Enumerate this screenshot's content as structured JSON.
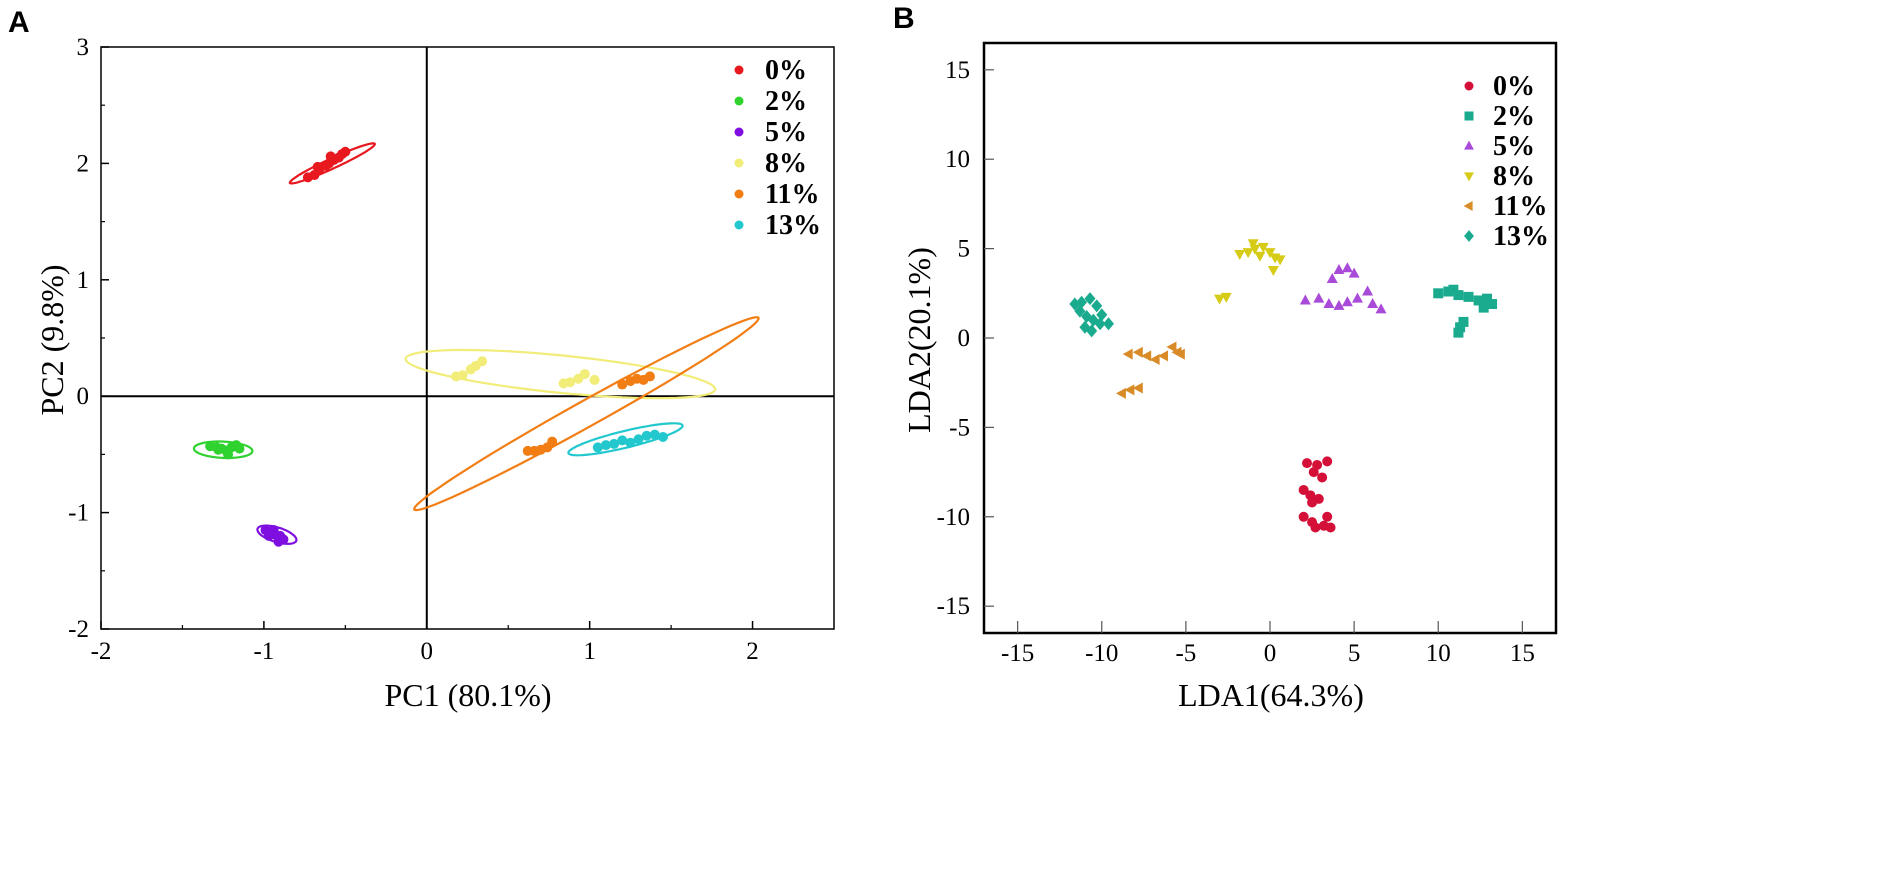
{
  "panels": [
    {
      "letter": "A",
      "type": "scatter",
      "xlabel": "PC1 (80.1%)",
      "ylabel": "PC2 (9.8%)",
      "xlim": [
        -2,
        2.5
      ],
      "ylim": [
        -2,
        3
      ],
      "xticks": [
        -2,
        -1,
        0,
        1,
        2
      ],
      "yticks": [
        -2,
        -1,
        0,
        1,
        2,
        3
      ],
      "legend_position": "top-right",
      "series": [
        {
          "name": "0%",
          "color": "#e8191e",
          "marker": "circle",
          "points": [
            [
              -0.73,
              1.88
            ],
            [
              -0.69,
              1.9
            ],
            [
              -0.66,
              1.95
            ],
            [
              -0.62,
              1.98
            ],
            [
              -0.6,
              2.0
            ],
            [
              -0.57,
              2.03
            ],
            [
              -0.54,
              2.05
            ],
            [
              -0.52,
              2.08
            ],
            [
              -0.5,
              2.1
            ],
            [
              -0.67,
              1.97
            ],
            [
              -0.59,
              2.06
            ]
          ],
          "ellipse": {
            "cx": -0.58,
            "cy": 2.0,
            "rx": 0.31,
            "ry": 0.04,
            "angle_deg": 33
          }
        },
        {
          "name": "2%",
          "color": "#2fd22f",
          "marker": "circle",
          "points": [
            [
              -1.33,
              -0.43
            ],
            [
              -1.29,
              -0.44
            ],
            [
              -1.26,
              -0.45
            ],
            [
              -1.23,
              -0.47
            ],
            [
              -1.2,
              -0.44
            ],
            [
              -1.17,
              -0.42
            ],
            [
              -1.22,
              -0.5
            ],
            [
              -1.28,
              -0.46
            ],
            [
              -1.15,
              -0.45
            ]
          ],
          "ellipse": {
            "cx": -1.25,
            "cy": -0.46,
            "rx": 0.18,
            "ry": 0.07,
            "angle_deg": -4
          }
        },
        {
          "name": "5%",
          "color": "#7f0fe0",
          "marker": "circle",
          "points": [
            [
              -0.99,
              -1.15
            ],
            [
              -0.96,
              -1.17
            ],
            [
              -0.93,
              -1.19
            ],
            [
              -0.9,
              -1.2
            ],
            [
              -0.88,
              -1.23
            ],
            [
              -0.94,
              -1.15
            ],
            [
              -0.91,
              -1.25
            ],
            [
              -0.97,
              -1.2
            ]
          ],
          "ellipse": {
            "cx": -0.92,
            "cy": -1.19,
            "rx": 0.13,
            "ry": 0.06,
            "angle_deg": -26
          }
        },
        {
          "name": "8%",
          "color": "#f2ec79",
          "marker": "circle",
          "points": [
            [
              0.18,
              0.17
            ],
            [
              0.22,
              0.18
            ],
            [
              0.27,
              0.23
            ],
            [
              0.3,
              0.26
            ],
            [
              0.34,
              0.3
            ],
            [
              0.84,
              0.11
            ],
            [
              0.88,
              0.12
            ],
            [
              0.93,
              0.15
            ],
            [
              0.97,
              0.19
            ],
            [
              1.03,
              0.14
            ]
          ],
          "ellipse": {
            "cx": 0.82,
            "cy": 0.19,
            "rx": 0.96,
            "ry": 0.16,
            "angle_deg": -8
          }
        },
        {
          "name": "11%",
          "color": "#f27d13",
          "marker": "circle",
          "points": [
            [
              0.62,
              -0.47
            ],
            [
              0.66,
              -0.47
            ],
            [
              0.7,
              -0.46
            ],
            [
              0.74,
              -0.44
            ],
            [
              0.77,
              -0.39
            ],
            [
              1.2,
              0.1
            ],
            [
              1.25,
              0.13
            ],
            [
              1.29,
              0.15
            ],
            [
              1.33,
              0.14
            ],
            [
              1.37,
              0.17
            ]
          ],
          "ellipse": {
            "cx": 0.98,
            "cy": -0.15,
            "rx": 1.34,
            "ry": 0.1,
            "angle_deg": 38
          }
        },
        {
          "name": "13%",
          "color": "#23c8cf",
          "marker": "circle",
          "points": [
            [
              1.05,
              -0.44
            ],
            [
              1.1,
              -0.42
            ],
            [
              1.15,
              -0.41
            ],
            [
              1.2,
              -0.38
            ],
            [
              1.25,
              -0.4
            ],
            [
              1.3,
              -0.37
            ],
            [
              1.35,
              -0.34
            ],
            [
              1.4,
              -0.33
            ],
            [
              1.45,
              -0.35
            ]
          ],
          "ellipse": {
            "cx": 1.22,
            "cy": -0.37,
            "rx": 0.37,
            "ry": 0.07,
            "angle_deg": 19
          }
        }
      ]
    },
    {
      "letter": "B",
      "type": "scatter",
      "xlabel": "LDA1(64.3%)",
      "ylabel": "LDA2(20.1%)",
      "xlim": [
        -17,
        17
      ],
      "ylim": [
        -16.5,
        16.5
      ],
      "xticks": [
        -15,
        -10,
        -5,
        0,
        5,
        10,
        15
      ],
      "yticks": [
        -15,
        -10,
        -5,
        0,
        5,
        10,
        15
      ],
      "legend_position": "top-right",
      "series": [
        {
          "name": "0%",
          "color": "#d41038",
          "marker": "circle",
          "points": [
            [
              2.2,
              -7.0
            ],
            [
              2.8,
              -7.1
            ],
            [
              3.4,
              -6.9
            ],
            [
              2.6,
              -7.5
            ],
            [
              3.1,
              -7.8
            ],
            [
              2.0,
              -8.5
            ],
            [
              2.4,
              -8.8
            ],
            [
              2.9,
              -9.0
            ],
            [
              2.5,
              -9.2
            ],
            [
              2.0,
              -10.0
            ],
            [
              2.5,
              -10.3
            ],
            [
              3.2,
              -10.5
            ],
            [
              3.6,
              -10.6
            ],
            [
              3.4,
              -10.0
            ],
            [
              2.7,
              -10.6
            ]
          ]
        },
        {
          "name": "2%",
          "color": "#1aaa8e",
          "marker": "square",
          "points": [
            [
              10.0,
              2.5
            ],
            [
              10.6,
              2.6
            ],
            [
              11.2,
              2.4
            ],
            [
              11.8,
              2.3
            ],
            [
              12.4,
              2.1
            ],
            [
              12.9,
              2.2
            ],
            [
              13.2,
              1.9
            ],
            [
              12.7,
              1.7
            ],
            [
              11.5,
              0.9
            ],
            [
              11.3,
              0.6
            ],
            [
              11.2,
              0.3
            ],
            [
              10.9,
              2.7
            ]
          ]
        },
        {
          "name": "5%",
          "color": "#a94ad9",
          "marker": "triangle-up",
          "points": [
            [
              2.1,
              2.1
            ],
            [
              2.9,
              2.2
            ],
            [
              3.5,
              1.9
            ],
            [
              4.1,
              1.8
            ],
            [
              4.6,
              2.0
            ],
            [
              3.7,
              3.3
            ],
            [
              4.1,
              3.8
            ],
            [
              4.6,
              3.9
            ],
            [
              5.0,
              3.6
            ],
            [
              5.8,
              2.6
            ],
            [
              6.1,
              1.9
            ],
            [
              6.6,
              1.6
            ],
            [
              5.2,
              2.2
            ]
          ]
        },
        {
          "name": "8%",
          "color": "#d6cc17",
          "marker": "triangle-down",
          "points": [
            [
              -1.8,
              4.7
            ],
            [
              -1.3,
              4.8
            ],
            [
              -0.9,
              5.0
            ],
            [
              -0.4,
              5.1
            ],
            [
              0.0,
              4.8
            ],
            [
              0.3,
              4.5
            ],
            [
              0.6,
              4.4
            ],
            [
              -1.0,
              5.3
            ],
            [
              -0.6,
              4.6
            ],
            [
              0.2,
              3.8
            ],
            [
              -3.0,
              2.2
            ],
            [
              -2.6,
              2.3
            ]
          ]
        },
        {
          "name": "11%",
          "color": "#d98b27",
          "marker": "triangle-left",
          "points": [
            [
              -8.4,
              -0.9
            ],
            [
              -7.8,
              -0.8
            ],
            [
              -7.3,
              -1.0
            ],
            [
              -6.8,
              -1.2
            ],
            [
              -6.3,
              -1.0
            ],
            [
              -5.8,
              -0.5
            ],
            [
              -5.5,
              -0.8
            ],
            [
              -5.3,
              -0.9
            ],
            [
              -8.8,
              -3.1
            ],
            [
              -8.3,
              -2.9
            ],
            [
              -7.8,
              -2.8
            ]
          ]
        },
        {
          "name": "13%",
          "color": "#1aaa8e",
          "marker": "diamond",
          "points": [
            [
              -11.6,
              1.9
            ],
            [
              -11.2,
              2.0
            ],
            [
              -10.7,
              2.2
            ],
            [
              -10.3,
              1.8
            ],
            [
              -10.9,
              1.2
            ],
            [
              -10.5,
              1.0
            ],
            [
              -10.1,
              0.8
            ],
            [
              -9.6,
              0.8
            ],
            [
              -11.0,
              0.6
            ],
            [
              -10.6,
              0.4
            ],
            [
              -11.3,
              1.5
            ],
            [
              -10.0,
              1.3
            ]
          ]
        }
      ]
    }
  ]
}
